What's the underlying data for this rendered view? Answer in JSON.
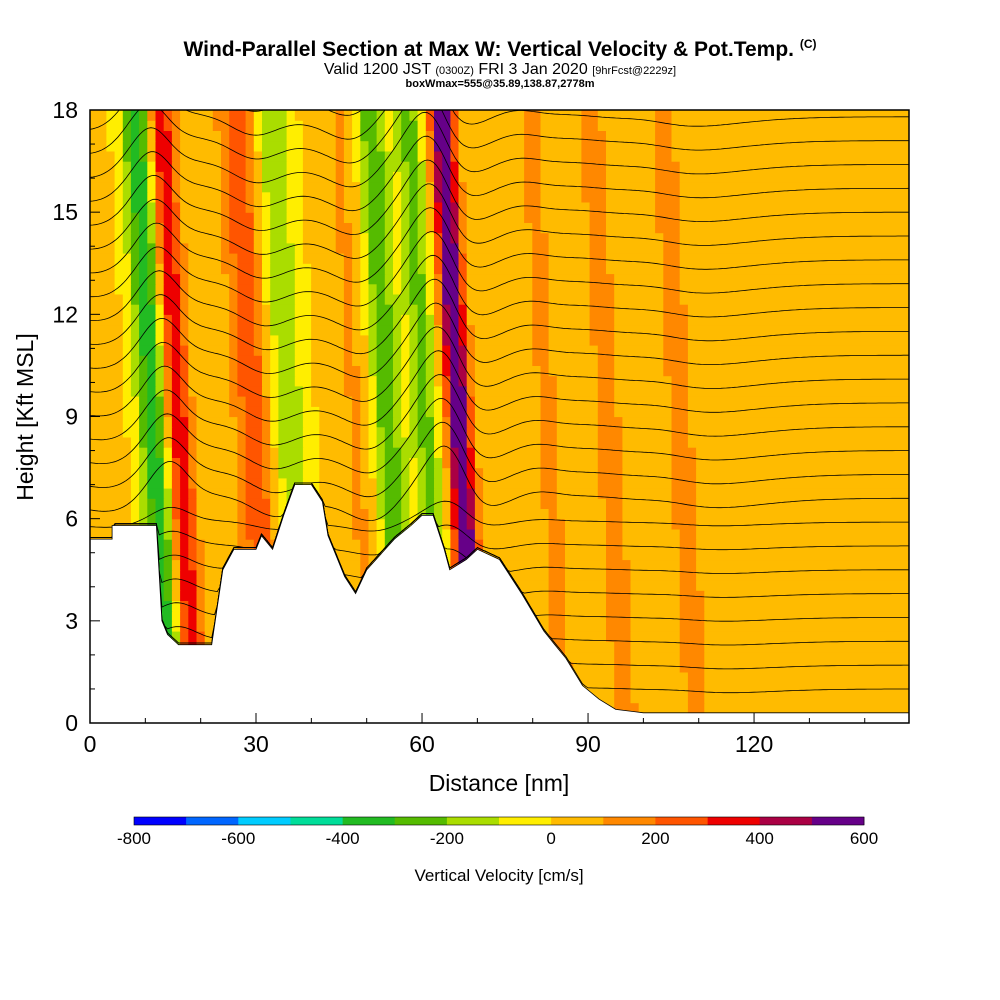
{
  "title": "Wind-Parallel Section at Max W: Vertical Velocity & Pot.Temp.",
  "title_mark": "(C)",
  "subtitle_valid": "Valid 1200 JST",
  "subtitle_utc": "(0300Z)",
  "subtitle_date": "FRI 3 Jan 2020",
  "subtitle_fcst": "[9hrFcst@2229z]",
  "subtitle2": "boxWmax=555@35.89,138.87,2778m",
  "chart_data": {
    "type": "heatmap",
    "xlabel": "Distance [nm]",
    "ylabel": "Height [Kft MSL]",
    "xlim": [
      0,
      148
    ],
    "ylim": [
      0,
      18
    ],
    "x_ticks": [
      0,
      30,
      60,
      90,
      120
    ],
    "y_ticks": [
      0,
      3,
      6,
      9,
      12,
      15,
      18
    ],
    "colorbar": {
      "label": "Vertical Velocity [cm/s]",
      "tick_labels": [
        "-800",
        "-600",
        "-400",
        "-200",
        "0",
        "200",
        "400",
        "600"
      ],
      "levels": [
        -800,
        -700,
        -600,
        -500,
        -400,
        -300,
        -200,
        -100,
        0,
        100,
        200,
        300,
        400,
        500,
        600
      ],
      "colors": [
        "#0000ff",
        "#0066ff",
        "#00ccff",
        "#00dd99",
        "#22bb22",
        "#55bb00",
        "#aadd00",
        "#ffee00",
        "#ffbb00",
        "#ff8800",
        "#ff5500",
        "#ee0000",
        "#aa0044",
        "#660088"
      ]
    },
    "terrain": [
      [
        0,
        5.4
      ],
      [
        4,
        5.4
      ],
      [
        4,
        5.8
      ],
      [
        12,
        5.8
      ],
      [
        13,
        3
      ],
      [
        14,
        2.6
      ],
      [
        16,
        2.3
      ],
      [
        22,
        2.3
      ],
      [
        24,
        4.5
      ],
      [
        26,
        5.1
      ],
      [
        30,
        5.1
      ],
      [
        31,
        5.5
      ],
      [
        33,
        5.1
      ],
      [
        35,
        6.1
      ],
      [
        37,
        7
      ],
      [
        40,
        7
      ],
      [
        42,
        6.5
      ],
      [
        43,
        5.5
      ],
      [
        46,
        4.3
      ],
      [
        48,
        3.8
      ],
      [
        50,
        4.5
      ],
      [
        55,
        5.4
      ],
      [
        58,
        5.8
      ],
      [
        60,
        6.1
      ],
      [
        62,
        6.1
      ],
      [
        64,
        5.1
      ],
      [
        65,
        4.5
      ],
      [
        68,
        4.8
      ],
      [
        70,
        5.1
      ],
      [
        74,
        4.8
      ],
      [
        76,
        4.3
      ],
      [
        78,
        3.8
      ],
      [
        82,
        2.7
      ],
      [
        84,
        2.3
      ],
      [
        86,
        1.9
      ],
      [
        89,
        1.1
      ],
      [
        92,
        0.7
      ],
      [
        95,
        0.4
      ],
      [
        100,
        0.3
      ],
      [
        148,
        0.3
      ]
    ],
    "velocity_features": [
      {
        "x": 17,
        "w": 2.5,
        "v": 400
      },
      {
        "x": 13,
        "w": 3,
        "v": -400
      },
      {
        "x": 31,
        "w": 3.5,
        "v": 250
      },
      {
        "x": 37,
        "w": 3.5,
        "v": -200
      },
      {
        "x": 55,
        "w": 3,
        "v": -300
      },
      {
        "x": 50,
        "w": 4,
        "v": 100
      },
      {
        "x": 68,
        "w": 2.2,
        "v": 600
      },
      {
        "x": 62,
        "w": 2.5,
        "v": -250
      },
      {
        "x": 84,
        "w": 3,
        "v": 100
      },
      {
        "x": 95,
        "w": 4,
        "v": 100
      },
      {
        "x": 108,
        "w": 4,
        "v": 100
      }
    ]
  }
}
